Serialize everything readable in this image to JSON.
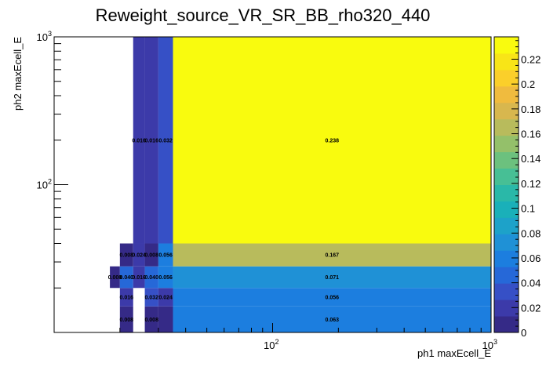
{
  "chart_data": {
    "type": "heatmap",
    "title": "Reweight_source_VR_SR_BB_rho320_440",
    "xlabel": "ph1 maxEcell_E",
    "ylabel": "ph2 maxEcell_E",
    "x_scale": "log",
    "y_scale": "log",
    "xlim": [
      10,
      1000
    ],
    "ylim": [
      10,
      1000
    ],
    "x_major_ticks": [
      {
        "value": 100,
        "label": "10",
        "exp": "2"
      },
      {
        "value": 1000,
        "label": "10",
        "exp": "3"
      }
    ],
    "y_major_ticks": [
      {
        "value": 100,
        "label": "10",
        "exp": "2"
      },
      {
        "value": 1000,
        "label": "10",
        "exp": "3"
      }
    ],
    "x_bin_edges": [
      20,
      23,
      26,
      30,
      35,
      1000
    ],
    "y_bin_edges": [
      10,
      15,
      20,
      28,
      40,
      1000
    ],
    "cells": [
      {
        "x0": 20,
        "x1": 23,
        "y0": 10,
        "y1": 15,
        "value": 0.008,
        "label": "0.008"
      },
      {
        "x0": 26,
        "x1": 30,
        "y0": 10,
        "y1": 15,
        "value": 0.008,
        "label": "0.008"
      },
      {
        "x0": 30,
        "x1": 35,
        "y0": 10,
        "y1": 15,
        "value": 0.008,
        "label": ""
      },
      {
        "x0": 35,
        "x1": 1000,
        "y0": 10,
        "y1": 15,
        "value": 0.063,
        "label": "0.063"
      },
      {
        "x0": 20,
        "x1": 23,
        "y0": 15,
        "y1": 20,
        "value": 0.016,
        "label": "0.016"
      },
      {
        "x0": 26,
        "x1": 30,
        "y0": 15,
        "y1": 20,
        "value": 0.032,
        "label": "0.032"
      },
      {
        "x0": 30,
        "x1": 35,
        "y0": 15,
        "y1": 20,
        "value": 0.024,
        "label": "0.024"
      },
      {
        "x0": 35,
        "x1": 1000,
        "y0": 15,
        "y1": 20,
        "value": 0.056,
        "label": "0.056"
      },
      {
        "x0": 18,
        "x1": 20,
        "y0": 20,
        "y1": 28,
        "value": 0.008,
        "label": "0.008"
      },
      {
        "x0": 20,
        "x1": 23,
        "y0": 20,
        "y1": 28,
        "value": 0.04,
        "label": "0.040"
      },
      {
        "x0": 23,
        "x1": 26,
        "y0": 20,
        "y1": 28,
        "value": 0.016,
        "label": "0.016"
      },
      {
        "x0": 26,
        "x1": 30,
        "y0": 20,
        "y1": 28,
        "value": 0.04,
        "label": "0.040"
      },
      {
        "x0": 30,
        "x1": 35,
        "y0": 20,
        "y1": 28,
        "value": 0.056,
        "label": "0.056"
      },
      {
        "x0": 35,
        "x1": 1000,
        "y0": 20,
        "y1": 28,
        "value": 0.071,
        "label": "0.071"
      },
      {
        "x0": 20,
        "x1": 23,
        "y0": 28,
        "y1": 40,
        "value": 0.008,
        "label": "0.008"
      },
      {
        "x0": 23,
        "x1": 26,
        "y0": 28,
        "y1": 40,
        "value": 0.024,
        "label": "0.024"
      },
      {
        "x0": 26,
        "x1": 30,
        "y0": 28,
        "y1": 40,
        "value": 0.008,
        "label": "0.008"
      },
      {
        "x0": 30,
        "x1": 35,
        "y0": 28,
        "y1": 40,
        "value": 0.056,
        "label": "0.056"
      },
      {
        "x0": 35,
        "x1": 1000,
        "y0": 28,
        "y1": 40,
        "value": 0.167,
        "label": "0.167"
      },
      {
        "x0": 23,
        "x1": 26,
        "y0": 40,
        "y1": 1000,
        "value": 0.016,
        "label": "0.016"
      },
      {
        "x0": 26,
        "x1": 30,
        "y0": 40,
        "y1": 1000,
        "value": 0.016,
        "label": "0.016"
      },
      {
        "x0": 30,
        "x1": 35,
        "y0": 40,
        "y1": 1000,
        "value": 0.032,
        "label": "0.032"
      },
      {
        "x0": 35,
        "x1": 1000,
        "y0": 40,
        "y1": 1000,
        "value": 0.238,
        "label": "0.238"
      }
    ],
    "colorbar": {
      "min": 0,
      "max": 0.238,
      "ticks": [
        "0",
        "0.02",
        "0.04",
        "0.06",
        "0.08",
        "0.1",
        "0.12",
        "0.14",
        "0.16",
        "0.18",
        "0.2",
        "0.22"
      ]
    },
    "palette": [
      "#352a87",
      "#3c3aa9",
      "#3650c6",
      "#2668d8",
      "#1c7edf",
      "#1f91d6",
      "#1da2c9",
      "#1ab0b9",
      "#2ab8a8",
      "#47bf95",
      "#6cc17e",
      "#94c06a",
      "#b8bb5c",
      "#d8b74e",
      "#f0bb3e",
      "#fbcf2a",
      "#f8e517",
      "#f9fb0e"
    ],
    "grid": false,
    "legend": "colorbar-right"
  }
}
